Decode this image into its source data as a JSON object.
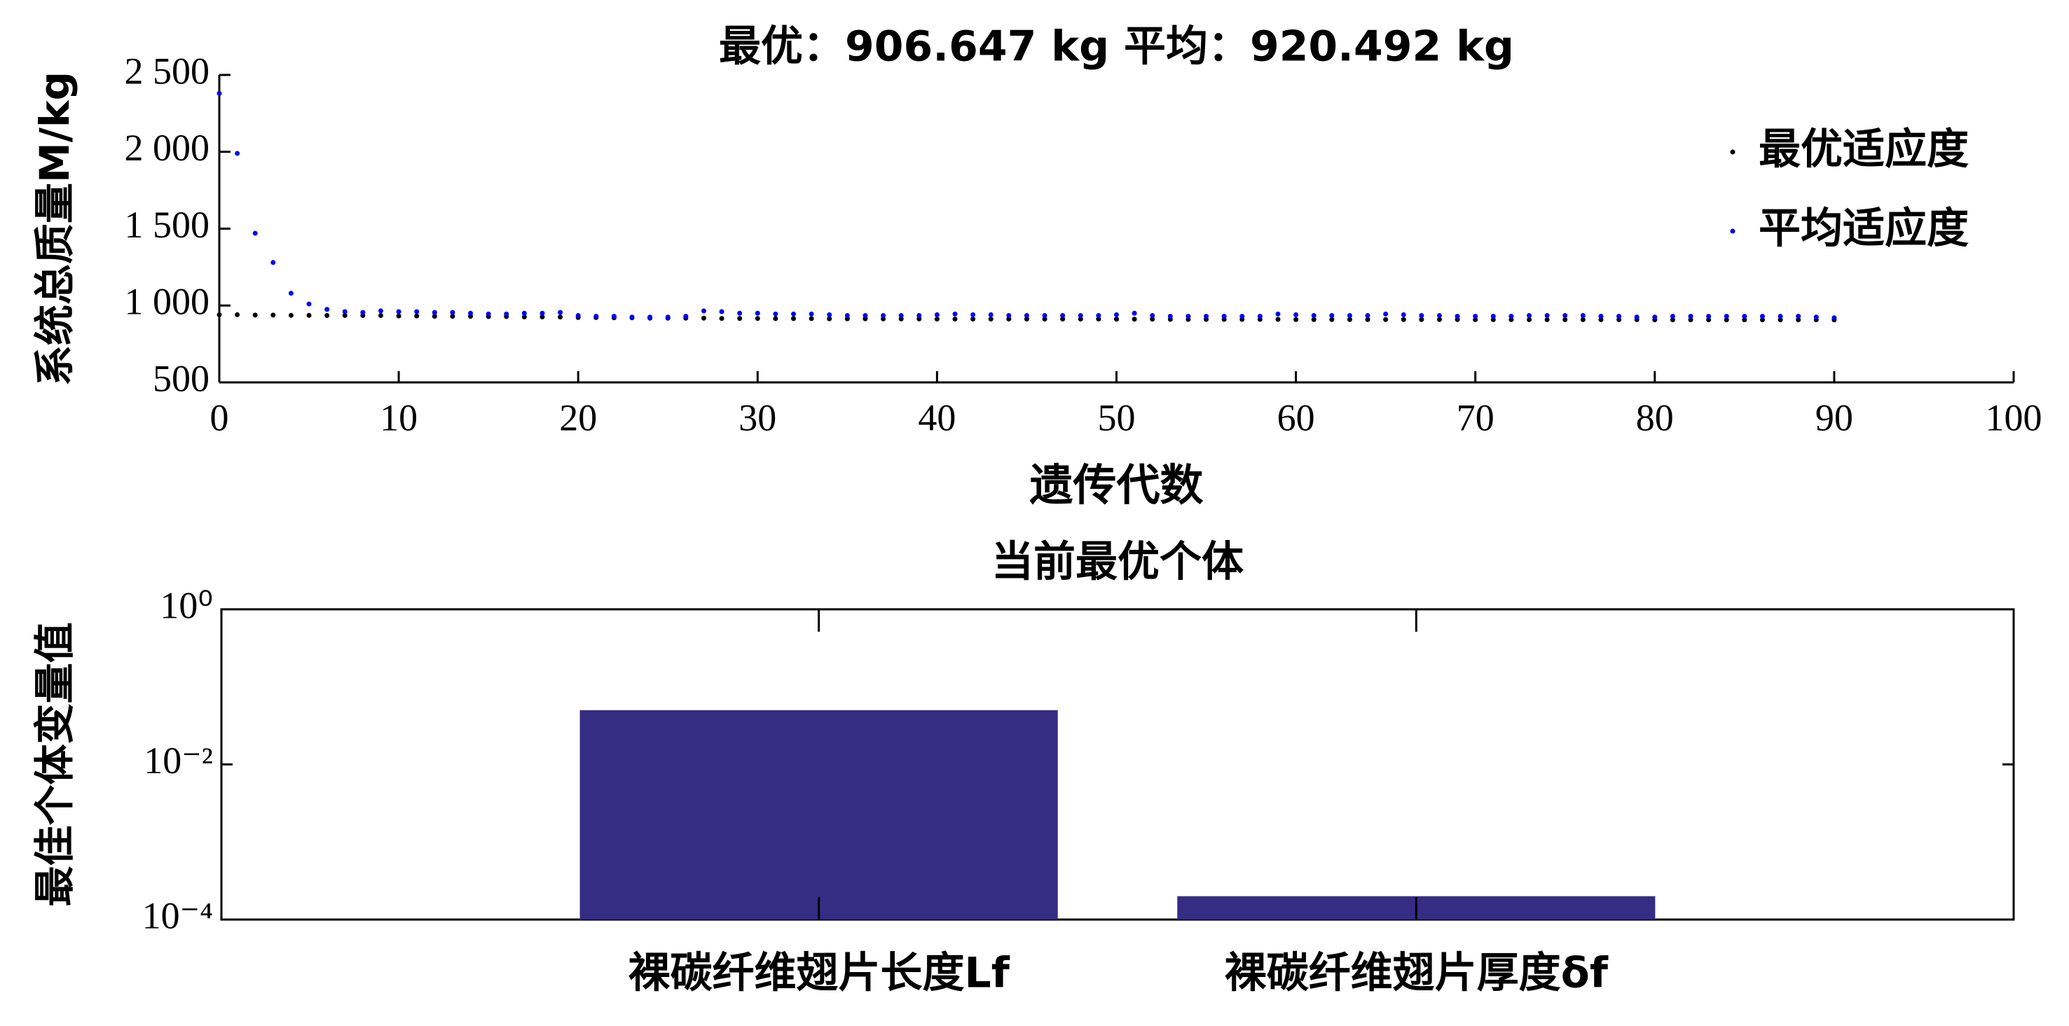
{
  "chart_data": [
    {
      "type": "scatter",
      "title": "最优：906.647 kg  平均：920.492 kg",
      "xlabel": "遗传代数",
      "ylabel": "系统总质量M/kg",
      "x": [
        0,
        1,
        2,
        3,
        4,
        5,
        6,
        7,
        8,
        9,
        10,
        11,
        12,
        13,
        14,
        15,
        16,
        17,
        18,
        19,
        20,
        21,
        22,
        23,
        24,
        25,
        26,
        27,
        28,
        29,
        30,
        31,
        32,
        33,
        34,
        35,
        36,
        37,
        38,
        39,
        40,
        41,
        42,
        43,
        44,
        45,
        46,
        47,
        48,
        49,
        50,
        51,
        52,
        53,
        54,
        55,
        56,
        57,
        58,
        59,
        60,
        61,
        62,
        63,
        64,
        65,
        66,
        67,
        68,
        69,
        70,
        71,
        72,
        73,
        74,
        75,
        76,
        77,
        78,
        79,
        80,
        81,
        82,
        83,
        84,
        85,
        86,
        87,
        88,
        89,
        90
      ],
      "series": [
        {
          "name": "最优适应度",
          "color": "#000000",
          "values": [
            940,
            940,
            938,
            938,
            936,
            936,
            935,
            935,
            935,
            935,
            932,
            932,
            930,
            930,
            930,
            928,
            928,
            926,
            926,
            925,
            922,
            922,
            920,
            920,
            918,
            918,
            918,
            918,
            916,
            916,
            916,
            915,
            915,
            915,
            914,
            914,
            914,
            913,
            913,
            913,
            912,
            912,
            912,
            912,
            912,
            912,
            912,
            912,
            912,
            912,
            911,
            911,
            911,
            910,
            910,
            910,
            910,
            910,
            910,
            910,
            909,
            909,
            909,
            909,
            909,
            909,
            909,
            909,
            909,
            909,
            908,
            908,
            908,
            908,
            908,
            908,
            908,
            908,
            908,
            908,
            907,
            907,
            907,
            907,
            907,
            907,
            907,
            907,
            907,
            907,
            906.647
          ]
        },
        {
          "name": "平均适应度",
          "color": "#0000ff",
          "values": [
            2380,
            1990,
            1470,
            1280,
            1080,
            1010,
            975,
            960,
            955,
            965,
            960,
            960,
            955,
            955,
            950,
            945,
            945,
            950,
            950,
            955,
            935,
            930,
            930,
            925,
            925,
            925,
            930,
            965,
            960,
            950,
            950,
            945,
            945,
            945,
            940,
            935,
            935,
            935,
            935,
            935,
            940,
            945,
            940,
            940,
            935,
            935,
            935,
            935,
            935,
            935,
            940,
            950,
            935,
            930,
            930,
            930,
            930,
            930,
            930,
            945,
            940,
            935,
            935,
            935,
            935,
            945,
            940,
            935,
            935,
            930,
            930,
            930,
            930,
            935,
            935,
            935,
            935,
            930,
            930,
            925,
            925,
            930,
            930,
            930,
            930,
            930,
            930,
            930,
            930,
            925,
            920.492
          ]
        }
      ],
      "xlim": [
        0,
        100
      ],
      "xticks": [
        0,
        10,
        20,
        30,
        40,
        50,
        60,
        70,
        80,
        90,
        100
      ],
      "ylim": [
        500,
        2500
      ],
      "yticks": [
        {
          "value": 2500,
          "label": "2 500"
        },
        {
          "value": 2000,
          "label": "2 000"
        },
        {
          "value": 1500,
          "label": "1 500"
        },
        {
          "value": 1000,
          "label": "1 000"
        },
        500
      ],
      "legend": "upper right"
    },
    {
      "type": "bar",
      "title": "当前最优个体",
      "ylabel": "最佳个体变量值",
      "categories": [
        "裸碳纤维翅片长度Lf",
        "裸碳纤维翅片厚度δf"
      ],
      "values": [
        0.05,
        0.0002
      ],
      "color": "#352c84",
      "log_y": true,
      "ylim": [
        0.0001,
        1
      ],
      "yticks": [
        {
          "value": 0.0001,
          "label": "10⁻⁴"
        },
        {
          "value": 0.01,
          "label": "10⁻²"
        },
        {
          "value": 1,
          "label": "10⁰"
        }
      ]
    }
  ]
}
